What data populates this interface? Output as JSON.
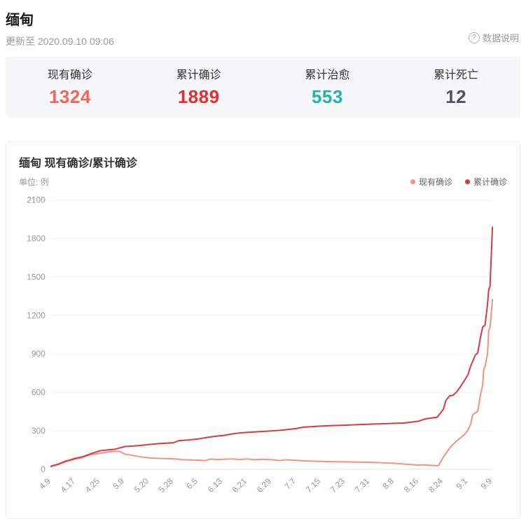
{
  "page": {
    "title": "缅甸",
    "updated": "更新至 2020.09.10 09:06",
    "data_info_label": "数据说明",
    "q_glyph": "?"
  },
  "stats": [
    {
      "label": "现有确诊",
      "value": "1324",
      "color": "#fa6357"
    },
    {
      "label": "累计确诊",
      "value": "1889",
      "color": "#e42d35"
    },
    {
      "label": "累计治愈",
      "value": "553",
      "color": "#1fb5ae"
    },
    {
      "label": "累计死亡",
      "value": "12",
      "color": "#4e555e"
    }
  ],
  "chart_data": {
    "type": "line",
    "title": "缅甸 现有确诊/累计确诊",
    "unit_label": "单位: 例",
    "ylim": [
      0,
      2100
    ],
    "yticks": [
      0,
      300,
      600,
      900,
      1200,
      1500,
      1800,
      2100
    ],
    "grid": true,
    "legend_position": "top-right",
    "categories": [
      "4.9",
      "4.17",
      "4.25",
      "5.9",
      "5.20",
      "5.28",
      "6.5",
      "6.13",
      "6.21",
      "6.29",
      "7.7",
      "7.15",
      "7.23",
      "7.31",
      "8.8",
      "8.16",
      "8.24",
      "9.1",
      "9.9"
    ],
    "colors": {
      "active": "#f4917f",
      "cumulative": "#d9393e"
    },
    "series": [
      {
        "name": "现有确诊",
        "color": "#f4917f",
        "points": [
          [
            0,
            20
          ],
          [
            0.3,
            36
          ],
          [
            0.6,
            58
          ],
          [
            1,
            79
          ],
          [
            1.3,
            92
          ],
          [
            1.6,
            112
          ],
          [
            2,
            124
          ],
          [
            2.3,
            133
          ],
          [
            2.6,
            140
          ],
          [
            2.8,
            139
          ],
          [
            3,
            118
          ],
          [
            3.3,
            108
          ],
          [
            3.6,
            98
          ],
          [
            4,
            88
          ],
          [
            4.4,
            84
          ],
          [
            5,
            80
          ],
          [
            5.4,
            74
          ],
          [
            6,
            70
          ],
          [
            6.3,
            67
          ],
          [
            6.5,
            79
          ],
          [
            6.8,
            75
          ],
          [
            7,
            77
          ],
          [
            7.4,
            80
          ],
          [
            7.7,
            75
          ],
          [
            8,
            80
          ],
          [
            8.3,
            74
          ],
          [
            8.6,
            77
          ],
          [
            9,
            74
          ],
          [
            9.3,
            68
          ],
          [
            9.6,
            73
          ],
          [
            10,
            69
          ],
          [
            10.4,
            64
          ],
          [
            11,
            61
          ],
          [
            11.5,
            58
          ],
          [
            12,
            57
          ],
          [
            12.5,
            55
          ],
          [
            13,
            54
          ],
          [
            13.5,
            50
          ],
          [
            14,
            46
          ],
          [
            14.4,
            40
          ],
          [
            15,
            31
          ],
          [
            15.2,
            34
          ],
          [
            15.5,
            29
          ],
          [
            15.8,
            27
          ],
          [
            16,
            95
          ],
          [
            16.15,
            135
          ],
          [
            16.3,
            175
          ],
          [
            16.5,
            215
          ],
          [
            16.7,
            245
          ],
          [
            16.85,
            270
          ],
          [
            17,
            305
          ],
          [
            17.1,
            345
          ],
          [
            17.2,
            425
          ],
          [
            17.3,
            440
          ],
          [
            17.4,
            450
          ],
          [
            17.5,
            565
          ],
          [
            17.6,
            655
          ],
          [
            17.65,
            785
          ],
          [
            17.7,
            800
          ],
          [
            17.8,
            905
          ],
          [
            17.85,
            1085
          ],
          [
            17.9,
            1105
          ],
          [
            18,
            1324
          ]
        ]
      },
      {
        "name": "累计确诊",
        "color": "#d9393e",
        "points": [
          [
            0,
            23
          ],
          [
            0.3,
            40
          ],
          [
            0.6,
            63
          ],
          [
            1,
            85
          ],
          [
            1.3,
            98
          ],
          [
            1.6,
            119
          ],
          [
            2,
            144
          ],
          [
            2.3,
            150
          ],
          [
            2.6,
            155
          ],
          [
            3,
            176
          ],
          [
            3.3,
            180
          ],
          [
            3.6,
            184
          ],
          [
            4,
            192
          ],
          [
            4.4,
            199
          ],
          [
            5,
            206
          ],
          [
            5.2,
            222
          ],
          [
            5.6,
            228
          ],
          [
            6,
            236
          ],
          [
            6.4,
            249
          ],
          [
            6.8,
            259
          ],
          [
            7,
            262
          ],
          [
            7.4,
            275
          ],
          [
            7.7,
            283
          ],
          [
            8,
            287
          ],
          [
            8.4,
            292
          ],
          [
            9,
            299
          ],
          [
            9.4,
            304
          ],
          [
            10,
            317
          ],
          [
            10.3,
            328
          ],
          [
            10.6,
            331
          ],
          [
            11,
            336
          ],
          [
            11.4,
            340
          ],
          [
            12,
            343
          ],
          [
            12.4,
            347
          ],
          [
            13,
            351
          ],
          [
            13.6,
            355
          ],
          [
            14,
            358
          ],
          [
            14.4,
            360
          ],
          [
            15,
            375
          ],
          [
            15.25,
            392
          ],
          [
            15.5,
            399
          ],
          [
            15.75,
            406
          ],
          [
            16,
            468
          ],
          [
            16.1,
            535
          ],
          [
            16.25,
            572
          ],
          [
            16.4,
            578
          ],
          [
            16.55,
            605
          ],
          [
            16.7,
            645
          ],
          [
            16.85,
            690
          ],
          [
            17,
            735
          ],
          [
            17.1,
            800
          ],
          [
            17.2,
            845
          ],
          [
            17.3,
            890
          ],
          [
            17.4,
            908
          ],
          [
            17.5,
            1015
          ],
          [
            17.6,
            1108
          ],
          [
            17.7,
            1125
          ],
          [
            17.8,
            1290
          ],
          [
            17.85,
            1405
          ],
          [
            17.9,
            1425
          ],
          [
            18,
            1889
          ]
        ]
      }
    ]
  }
}
